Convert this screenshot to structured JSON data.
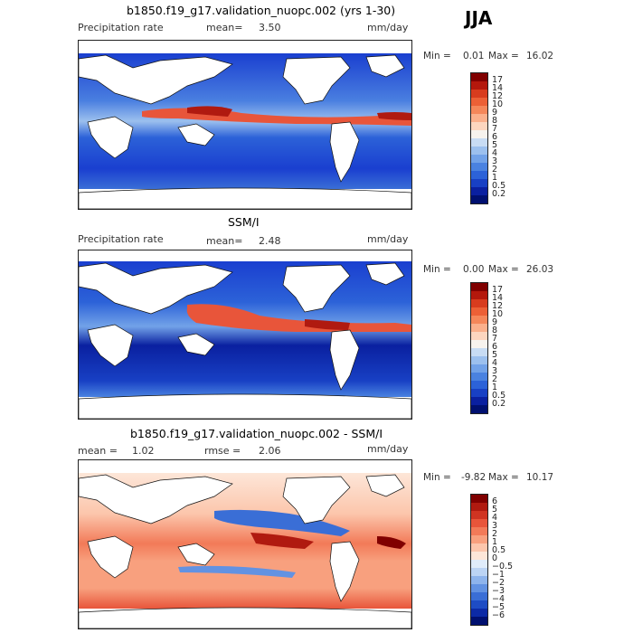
{
  "season": "JJA",
  "panels": [
    {
      "title": "b1850.f19_g17.validation_nuopc.002 (yrs 1-30)",
      "left_label": "Precipitation rate",
      "mean_label": "mean=",
      "mean_value": "3.50",
      "units": "mm/day",
      "min_label": "Min =",
      "min_value": "0.01",
      "max_label": "Max =",
      "max_value": "16.02",
      "colorbar": {
        "labels": [
          "17",
          "14",
          "12",
          "10",
          "9",
          "8",
          "7",
          "6",
          "5",
          "4",
          "3",
          "2",
          "1",
          "0.5",
          "0.2"
        ],
        "colors": [
          "#800000",
          "#b4180c",
          "#d83c1e",
          "#ec6036",
          "#f5875a",
          "#fbb08c",
          "#fdd6bf",
          "#f7f3ee",
          "#c8dcf4",
          "#9cc0ee",
          "#72a2e8",
          "#4a82e0",
          "#2c62d8",
          "#1840c4",
          "#0a20a0",
          "#001070"
        ]
      }
    },
    {
      "title": "SSM/I",
      "left_label": "Precipitation rate",
      "mean_label": "mean=",
      "mean_value": "2.48",
      "units": "mm/day",
      "min_label": "Min =",
      "min_value": "0.00",
      "max_label": "Max =",
      "max_value": "26.03",
      "colorbar": {
        "labels": [
          "17",
          "14",
          "12",
          "10",
          "9",
          "8",
          "7",
          "6",
          "5",
          "4",
          "3",
          "2",
          "1",
          "0.5",
          "0.2"
        ],
        "colors": [
          "#800000",
          "#b4180c",
          "#d83c1e",
          "#ec6036",
          "#f5875a",
          "#fbb08c",
          "#fdd6bf",
          "#f7f3ee",
          "#c8dcf4",
          "#9cc0ee",
          "#72a2e8",
          "#4a82e0",
          "#2c62d8",
          "#1840c4",
          "#0a20a0",
          "#001070"
        ]
      }
    },
    {
      "title": "b1850.f19_g17.validation_nuopc.002 - SSM/I",
      "mean_label": "mean =",
      "mean_value": "1.02",
      "rmse_label": "rmse =",
      "rmse_value": "2.06",
      "units": "mm/day",
      "min_label": "Min =",
      "min_value": "-9.82",
      "max_label": "Max =",
      "max_value": "10.17",
      "colorbar": {
        "labels": [
          "6",
          "5",
          "4",
          "3",
          "2",
          "1",
          "0.5",
          "0",
          "−0.5",
          "−1",
          "−2",
          "−3",
          "−4",
          "−5",
          "−6"
        ],
        "colors": [
          "#800000",
          "#b01a10",
          "#d03422",
          "#e8553a",
          "#f27a58",
          "#f8a07e",
          "#fcc6ac",
          "#fde6d8",
          "#e0ecfa",
          "#bcd4f4",
          "#8eb4ec",
          "#6292e2",
          "#3a6ed6",
          "#1e4cc4",
          "#0c2aa6",
          "#001070"
        ]
      }
    }
  ]
}
